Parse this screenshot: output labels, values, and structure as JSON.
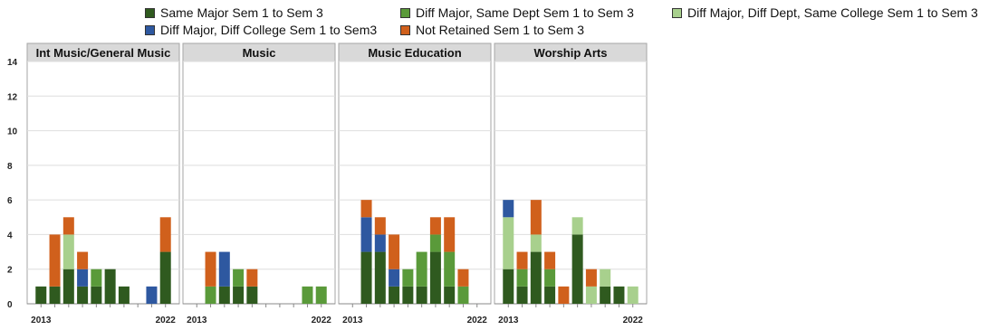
{
  "chart_data": {
    "type": "bar",
    "stacked": true,
    "legend_position": "top",
    "grid": true,
    "ylim": [
      0,
      14
    ],
    "yticks": [
      0,
      2,
      4,
      6,
      8,
      10,
      12,
      14
    ],
    "x": [
      2013,
      2014,
      2015,
      2016,
      2017,
      2018,
      2019,
      2020,
      2021,
      2022
    ],
    "xtick_labels": [
      "2013",
      "2022"
    ],
    "series": [
      {
        "name": "Same Major Sem 1 to Sem 3",
        "color": "#2f5a1f"
      },
      {
        "name": "Diff Major, Same Dept Sem 1 to Sem 3",
        "color": "#5a9a3a"
      },
      {
        "name": "Diff Major, Diff Dept, Same College Sem 1 to Sem 3",
        "color": "#a8d08d"
      },
      {
        "name": "Diff Major, Diff College Sem 1 to Sem3",
        "color": "#2e58a0"
      },
      {
        "name": "Not Retained Sem 1 to Sem 3",
        "color": "#d0601c"
      }
    ],
    "panels": [
      {
        "title": "Int Music/General Music",
        "values": [
          [
            1,
            1,
            2,
            1,
            1,
            2,
            1,
            0,
            0,
            3
          ],
          [
            0,
            0,
            0,
            0,
            1,
            0,
            0,
            0,
            0,
            0
          ],
          [
            0,
            0,
            2,
            0,
            0,
            0,
            0,
            0,
            0,
            0
          ],
          [
            0,
            0,
            0,
            1,
            0,
            0,
            0,
            0,
            1,
            0
          ],
          [
            0,
            3,
            1,
            1,
            0,
            0,
            0,
            0,
            0,
            2
          ]
        ]
      },
      {
        "title": "Music",
        "values": [
          [
            0,
            0,
            1,
            1,
            1,
            0,
            0,
            0,
            0,
            0
          ],
          [
            0,
            1,
            0,
            1,
            0,
            0,
            0,
            0,
            1,
            1
          ],
          [
            0,
            0,
            0,
            0,
            0,
            0,
            0,
            0,
            0,
            0
          ],
          [
            0,
            0,
            2,
            0,
            0,
            0,
            0,
            0,
            0,
            0
          ],
          [
            0,
            2,
            0,
            0,
            1,
            0,
            0,
            0,
            0,
            0
          ]
        ]
      },
      {
        "title": "Music Education",
        "values": [
          [
            0,
            3,
            3,
            1,
            1,
            1,
            3,
            1,
            0,
            0
          ],
          [
            0,
            0,
            0,
            0,
            1,
            2,
            1,
            2,
            1,
            0
          ],
          [
            0,
            0,
            0,
            0,
            0,
            0,
            0,
            0,
            0,
            0
          ],
          [
            0,
            2,
            1,
            1,
            0,
            0,
            0,
            0,
            0,
            0
          ],
          [
            0,
            1,
            1,
            2,
            0,
            0,
            1,
            2,
            1,
            0
          ]
        ]
      },
      {
        "title": "Worship Arts",
        "values": [
          [
            2,
            1,
            3,
            1,
            0,
            4,
            0,
            1,
            1,
            0
          ],
          [
            0,
            1,
            0,
            1,
            0,
            0,
            0,
            0,
            0,
            0
          ],
          [
            3,
            0,
            1,
            0,
            0,
            1,
            1,
            1,
            0,
            1
          ],
          [
            1,
            0,
            0,
            0,
            0,
            0,
            0,
            0,
            0,
            0
          ],
          [
            0,
            1,
            2,
            1,
            1,
            0,
            1,
            0,
            0,
            0
          ]
        ]
      }
    ]
  }
}
